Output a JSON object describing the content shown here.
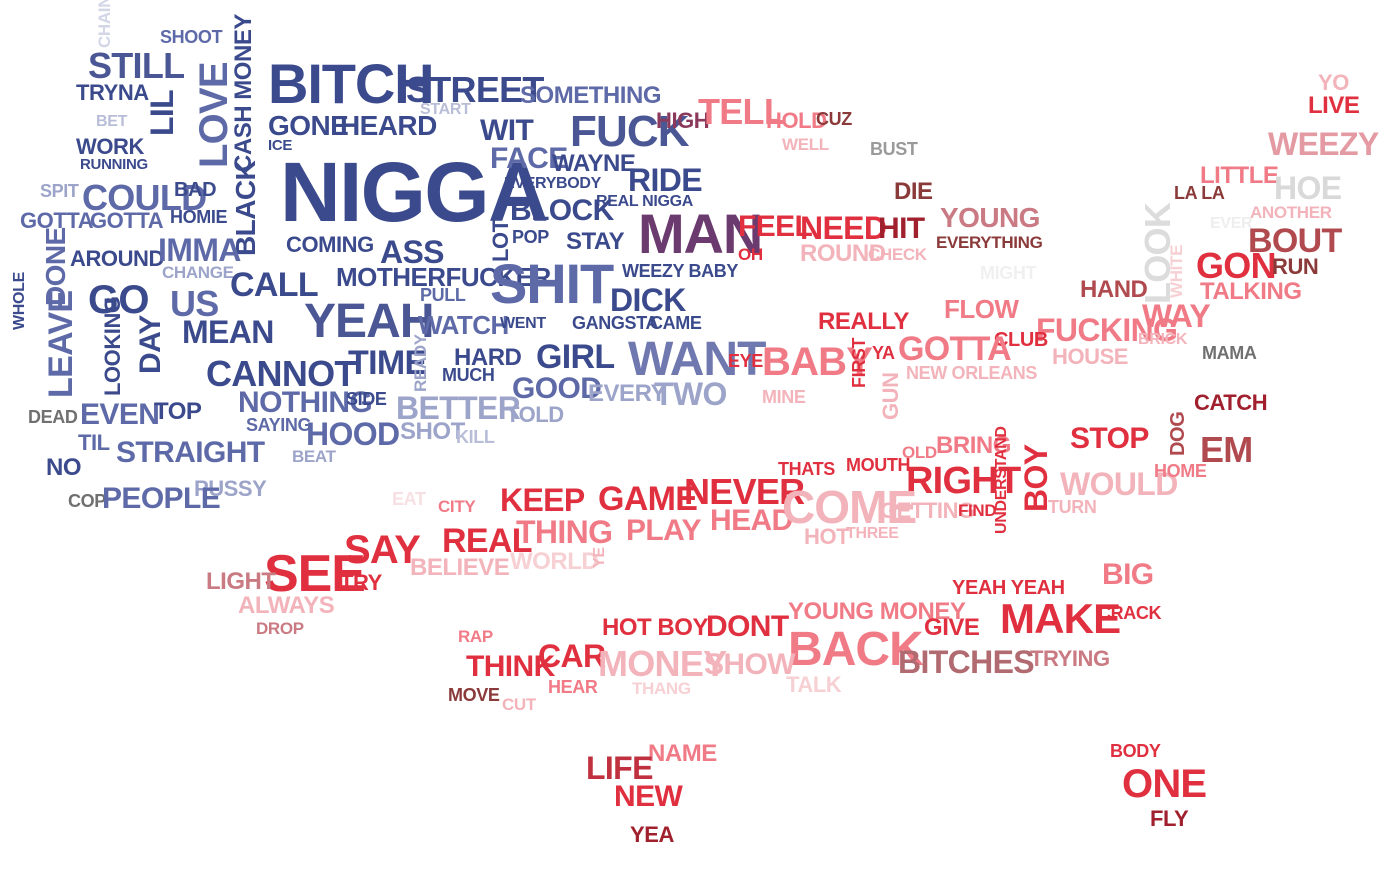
{
  "palette": {
    "dark_blue": "#3b4a8c",
    "mid_blue": "#5e6aa8",
    "light_blue": "#9ca4c9",
    "purple": "#6b3a6e",
    "red": "#e0303f",
    "pink": "#f07a86",
    "light_pink": "#f3b3ba",
    "brown": "#8b3a3a",
    "gray": "#9a9a9a",
    "light_gray": "#d9d9d9"
  },
  "words": [
    {
      "text": "CHAIN"
    },
    {
      "text": "SHOOT"
    },
    {
      "text": "STILL"
    },
    {
      "text": "TRYNA"
    },
    {
      "text": "BET"
    },
    {
      "text": "WORK"
    },
    {
      "text": "RUNNING"
    },
    {
      "text": "LIL"
    },
    {
      "text": "LOVE"
    },
    {
      "text": "CASH MONEY"
    },
    {
      "text": "BITCH"
    },
    {
      "text": "STREET"
    },
    {
      "text": "SOMETHING"
    },
    {
      "text": "START"
    },
    {
      "text": "GONE"
    },
    {
      "text": "HEARD"
    },
    {
      "text": "WIT"
    },
    {
      "text": "FUCK"
    },
    {
      "text": "HIGH"
    },
    {
      "text": "TELL"
    },
    {
      "text": "HOLD"
    },
    {
      "text": "CUZ"
    },
    {
      "text": "WELL"
    },
    {
      "text": "BUST"
    },
    {
      "text": "YO"
    },
    {
      "text": "LIVE"
    },
    {
      "text": "WEEZY"
    },
    {
      "text": "ICE"
    },
    {
      "text": "NIGGA"
    },
    {
      "text": "FACE"
    },
    {
      "text": "WAYNE"
    },
    {
      "text": "SPIT"
    },
    {
      "text": "COULD"
    },
    {
      "text": "BAD"
    },
    {
      "text": "BLACK"
    },
    {
      "text": "EVERYBODY"
    },
    {
      "text": "RIDE"
    },
    {
      "text": "DIE"
    },
    {
      "text": "LITTLE"
    },
    {
      "text": "LA LA"
    },
    {
      "text": "HOE"
    },
    {
      "text": "GOTTA"
    },
    {
      "text": "GOTTA"
    },
    {
      "text": "HOMIE"
    },
    {
      "text": "REAL NIGGA"
    },
    {
      "text": "BLOCK"
    },
    {
      "text": "YOUNG"
    },
    {
      "text": "ANOTHER"
    },
    {
      "text": "EVER"
    },
    {
      "text": "MAN"
    },
    {
      "text": "FEEL"
    },
    {
      "text": "NEED"
    },
    {
      "text": "HIT"
    },
    {
      "text": "EVERYTHING"
    },
    {
      "text": "BOUT"
    },
    {
      "text": "AROUND"
    },
    {
      "text": "IMMA"
    },
    {
      "text": "COMING"
    },
    {
      "text": "ASS"
    },
    {
      "text": "LOT"
    },
    {
      "text": "POP"
    },
    {
      "text": "STAY"
    },
    {
      "text": "OH"
    },
    {
      "text": "ROUND"
    },
    {
      "text": "CHECK"
    },
    {
      "text": "LOOK"
    },
    {
      "text": "WHITE"
    },
    {
      "text": "GON"
    },
    {
      "text": "RUN"
    },
    {
      "text": "CHANGE"
    },
    {
      "text": "WHOLE"
    },
    {
      "text": "DONE"
    },
    {
      "text": "GO"
    },
    {
      "text": "US"
    },
    {
      "text": "CALL"
    },
    {
      "text": "MOTHERFUCKER"
    },
    {
      "text": "SHIT"
    },
    {
      "text": "WEEZY BABY"
    },
    {
      "text": "MIGHT"
    },
    {
      "text": "HAND"
    },
    {
      "text": "TALKING"
    },
    {
      "text": "PULL"
    },
    {
      "text": "DICK"
    },
    {
      "text": "FLOW"
    },
    {
      "text": "MEAN"
    },
    {
      "text": "YEAH"
    },
    {
      "text": "WATCH"
    },
    {
      "text": "WENT"
    },
    {
      "text": "GANGSTA"
    },
    {
      "text": "CAME"
    },
    {
      "text": "REALLY"
    },
    {
      "text": "FUCKING"
    },
    {
      "text": "WAY"
    },
    {
      "text": "LEAVE"
    },
    {
      "text": "LOOKING"
    },
    {
      "text": "DAY"
    },
    {
      "text": "CLUB"
    },
    {
      "text": "BRICK"
    },
    {
      "text": "GIRL"
    },
    {
      "text": "WANT"
    },
    {
      "text": "BABY"
    },
    {
      "text": "GOTTA"
    },
    {
      "text": "MAMA"
    },
    {
      "text": "HARD"
    },
    {
      "text": "TIME"
    },
    {
      "text": "CANNOT"
    },
    {
      "text": "READY"
    },
    {
      "text": "MUCH"
    },
    {
      "text": "EYE"
    },
    {
      "text": "FIRST"
    },
    {
      "text": "YA"
    },
    {
      "text": "HOUSE"
    },
    {
      "text": "NEW ORLEANS"
    },
    {
      "text": "GOOD"
    },
    {
      "text": "EVERY"
    },
    {
      "text": "TWO"
    },
    {
      "text": "NOTHING"
    },
    {
      "text": "SIDE"
    },
    {
      "text": "MINE"
    },
    {
      "text": "GUN"
    },
    {
      "text": "CATCH"
    },
    {
      "text": "DEAD"
    },
    {
      "text": "EVEN"
    },
    {
      "text": "TOP"
    },
    {
      "text": "BETTER"
    },
    {
      "text": "TOLD"
    },
    {
      "text": "SAYING"
    },
    {
      "text": "HOOD"
    },
    {
      "text": "SHOT"
    },
    {
      "text": "KILL"
    },
    {
      "text": "STOP"
    },
    {
      "text": "DOG"
    },
    {
      "text": "BRING"
    },
    {
      "text": "TIL"
    },
    {
      "text": "STRAIGHT"
    },
    {
      "text": "EM"
    },
    {
      "text": "OLD"
    },
    {
      "text": "MOUTH"
    },
    {
      "text": "THATS"
    },
    {
      "text": "RIGHT"
    },
    {
      "text": "UNDERSTAND"
    },
    {
      "text": "BOY"
    },
    {
      "text": "WOULD"
    },
    {
      "text": "HOME"
    },
    {
      "text": "NO"
    },
    {
      "text": "BEAT"
    },
    {
      "text": "NEVER"
    },
    {
      "text": "PUSSY"
    },
    {
      "text": "COP"
    },
    {
      "text": "PEOPLE"
    },
    {
      "text": "EAT"
    },
    {
      "text": "CITY"
    },
    {
      "text": "KEEP"
    },
    {
      "text": "GAME"
    },
    {
      "text": "HEAD"
    },
    {
      "text": "COME"
    },
    {
      "text": "GETTING"
    },
    {
      "text": "FIND"
    },
    {
      "text": "TURN"
    },
    {
      "text": "REAL"
    },
    {
      "text": "THING"
    },
    {
      "text": "PLAY"
    },
    {
      "text": "HOT"
    },
    {
      "text": "THREE"
    },
    {
      "text": "SAY"
    },
    {
      "text": "SEE"
    },
    {
      "text": "BELIEVE"
    },
    {
      "text": "WORLD"
    },
    {
      "text": "YE"
    },
    {
      "text": "LIGHT"
    },
    {
      "text": "TRY"
    },
    {
      "text": "YEAH YEAH"
    },
    {
      "text": "BIG"
    },
    {
      "text": "ALWAYS"
    },
    {
      "text": "YOUNG MONEY"
    },
    {
      "text": "CRACK"
    },
    {
      "text": "DROP"
    },
    {
      "text": "HOT BOY"
    },
    {
      "text": "DONT"
    },
    {
      "text": "GIVE"
    },
    {
      "text": "MAKE"
    },
    {
      "text": "RAP"
    },
    {
      "text": "CAR"
    },
    {
      "text": "BACK"
    },
    {
      "text": "THINK"
    },
    {
      "text": "MONEY"
    },
    {
      "text": "SHOW"
    },
    {
      "text": "BITCHES"
    },
    {
      "text": "TRYING"
    },
    {
      "text": "HEAR"
    },
    {
      "text": "THANG"
    },
    {
      "text": "TALK"
    },
    {
      "text": "MOVE"
    },
    {
      "text": "CUT"
    },
    {
      "text": "NAME"
    },
    {
      "text": "BODY"
    },
    {
      "text": "LIFE"
    },
    {
      "text": "NEW"
    },
    {
      "text": "ONE"
    },
    {
      "text": "FLY"
    },
    {
      "text": "YEA"
    }
  ]
}
